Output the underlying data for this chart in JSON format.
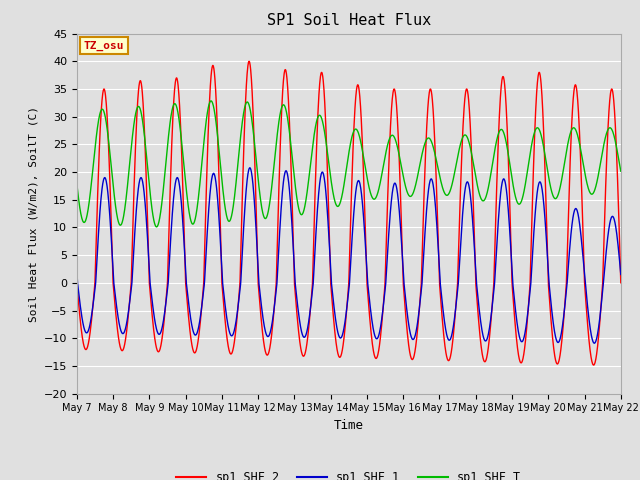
{
  "title": "SP1 Soil Heat Flux",
  "xlabel": "Time",
  "ylabel": "Soil Heat Flux (W/m2), SoilT (C)",
  "ylim": [
    -20,
    45
  ],
  "yticks": [
    -20,
    -15,
    -10,
    -5,
    0,
    5,
    10,
    15,
    20,
    25,
    30,
    35,
    40,
    45
  ],
  "xtick_labels": [
    "May 7",
    "May 8",
    "May 9",
    "May 10",
    "May 11",
    "May 12",
    "May 13",
    "May 14",
    "May 15",
    "May 16",
    "May 17",
    "May 18",
    "May 19",
    "May 20",
    "May 21",
    "May 22"
  ],
  "color_shf2": "#ff0000",
  "color_shf1": "#0000cc",
  "color_shft": "#00bb00",
  "legend_labels": [
    "sp1_SHF_2",
    "sp1_SHF_1",
    "sp1_SHF_T"
  ],
  "tz_label": "TZ_osu",
  "bg_color": "#e0e0e0",
  "grid_color": "#ffffff",
  "annotation_box_color": "#ffffcc",
  "annotation_border_color": "#cc8800",
  "figsize": [
    6.4,
    4.8
  ],
  "dpi": 100
}
